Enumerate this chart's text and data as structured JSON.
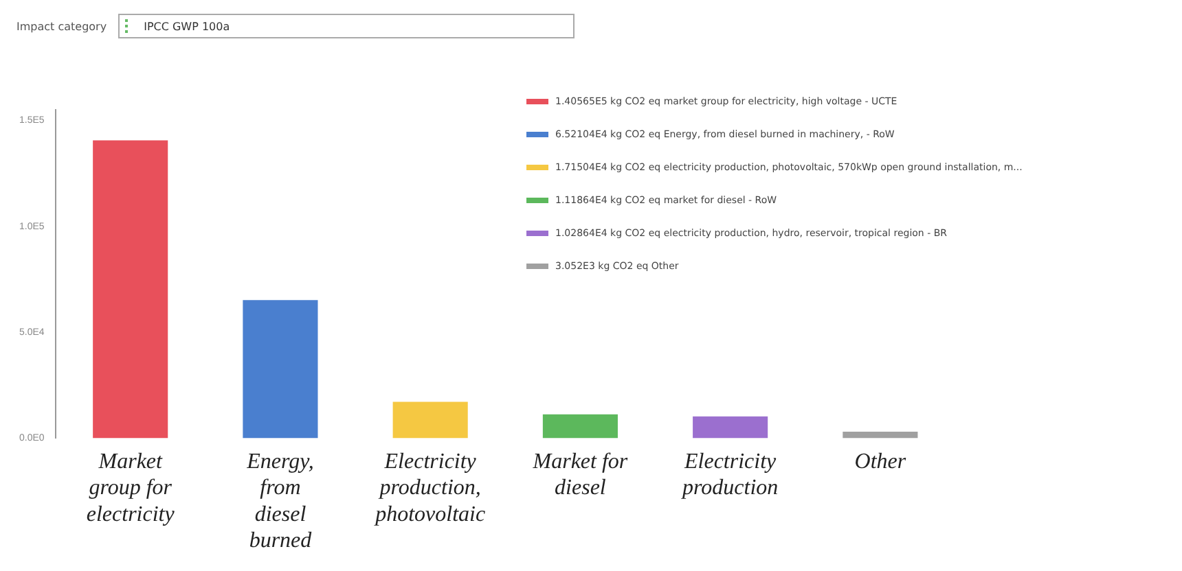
{
  "chart_data": {
    "type": "bar",
    "annotations": [
      "Impact category",
      "IPCC GWP 100a"
    ],
    "categories": [
      "Market group for electricity",
      "Energy, from diesel burned",
      "Electricity production, photovoltaic",
      "Market for diesel",
      "Electricity production",
      "Other"
    ],
    "series": [
      {
        "name": "1.40565E5 kg CO2 eq market group for electricity, high voltage - UCTE",
        "color": "#e8505b",
        "values": [
          140565,
          null,
          null,
          null,
          null,
          null
        ]
      },
      {
        "name": "6.52104E4 kg CO2 eq Energy, from diesel burned in machinery, - RoW",
        "color": "#4a7fcf",
        "values": [
          null,
          65210.4,
          null,
          null,
          null,
          null
        ]
      },
      {
        "name": "1.71504E4 kg CO2 eq electricity production, photovoltaic, 570kWp open ground installation, m...",
        "color": "#f5c842",
        "values": [
          null,
          null,
          17150.4,
          null,
          null,
          null
        ]
      },
      {
        "name": "1.11864E4 kg CO2 eq market for diesel - RoW",
        "color": "#5cb85c",
        "values": [
          null,
          null,
          null,
          11186.4,
          null,
          null
        ]
      },
      {
        "name": "1.02864E4 kg CO2 eq electricity production, hydro, reservoir, tropical region - BR",
        "color": "#9b6fcf",
        "values": [
          null,
          null,
          null,
          null,
          10286.4,
          null
        ]
      },
      {
        "name": "3.052E3 kg CO2 eq Other",
        "color": "#a0a0a0",
        "values": [
          null,
          null,
          null,
          null,
          null,
          3052
        ]
      }
    ],
    "ylim": [
      0,
      155000
    ],
    "yticks": [
      {
        "value": 0,
        "label": "0.0E0"
      },
      {
        "value": 50000,
        "label": "5.0E4"
      },
      {
        "value": 100000,
        "label": "1.0E5"
      },
      {
        "value": 150000,
        "label": "1.5E5"
      }
    ],
    "grid": false,
    "legend": "top right"
  }
}
